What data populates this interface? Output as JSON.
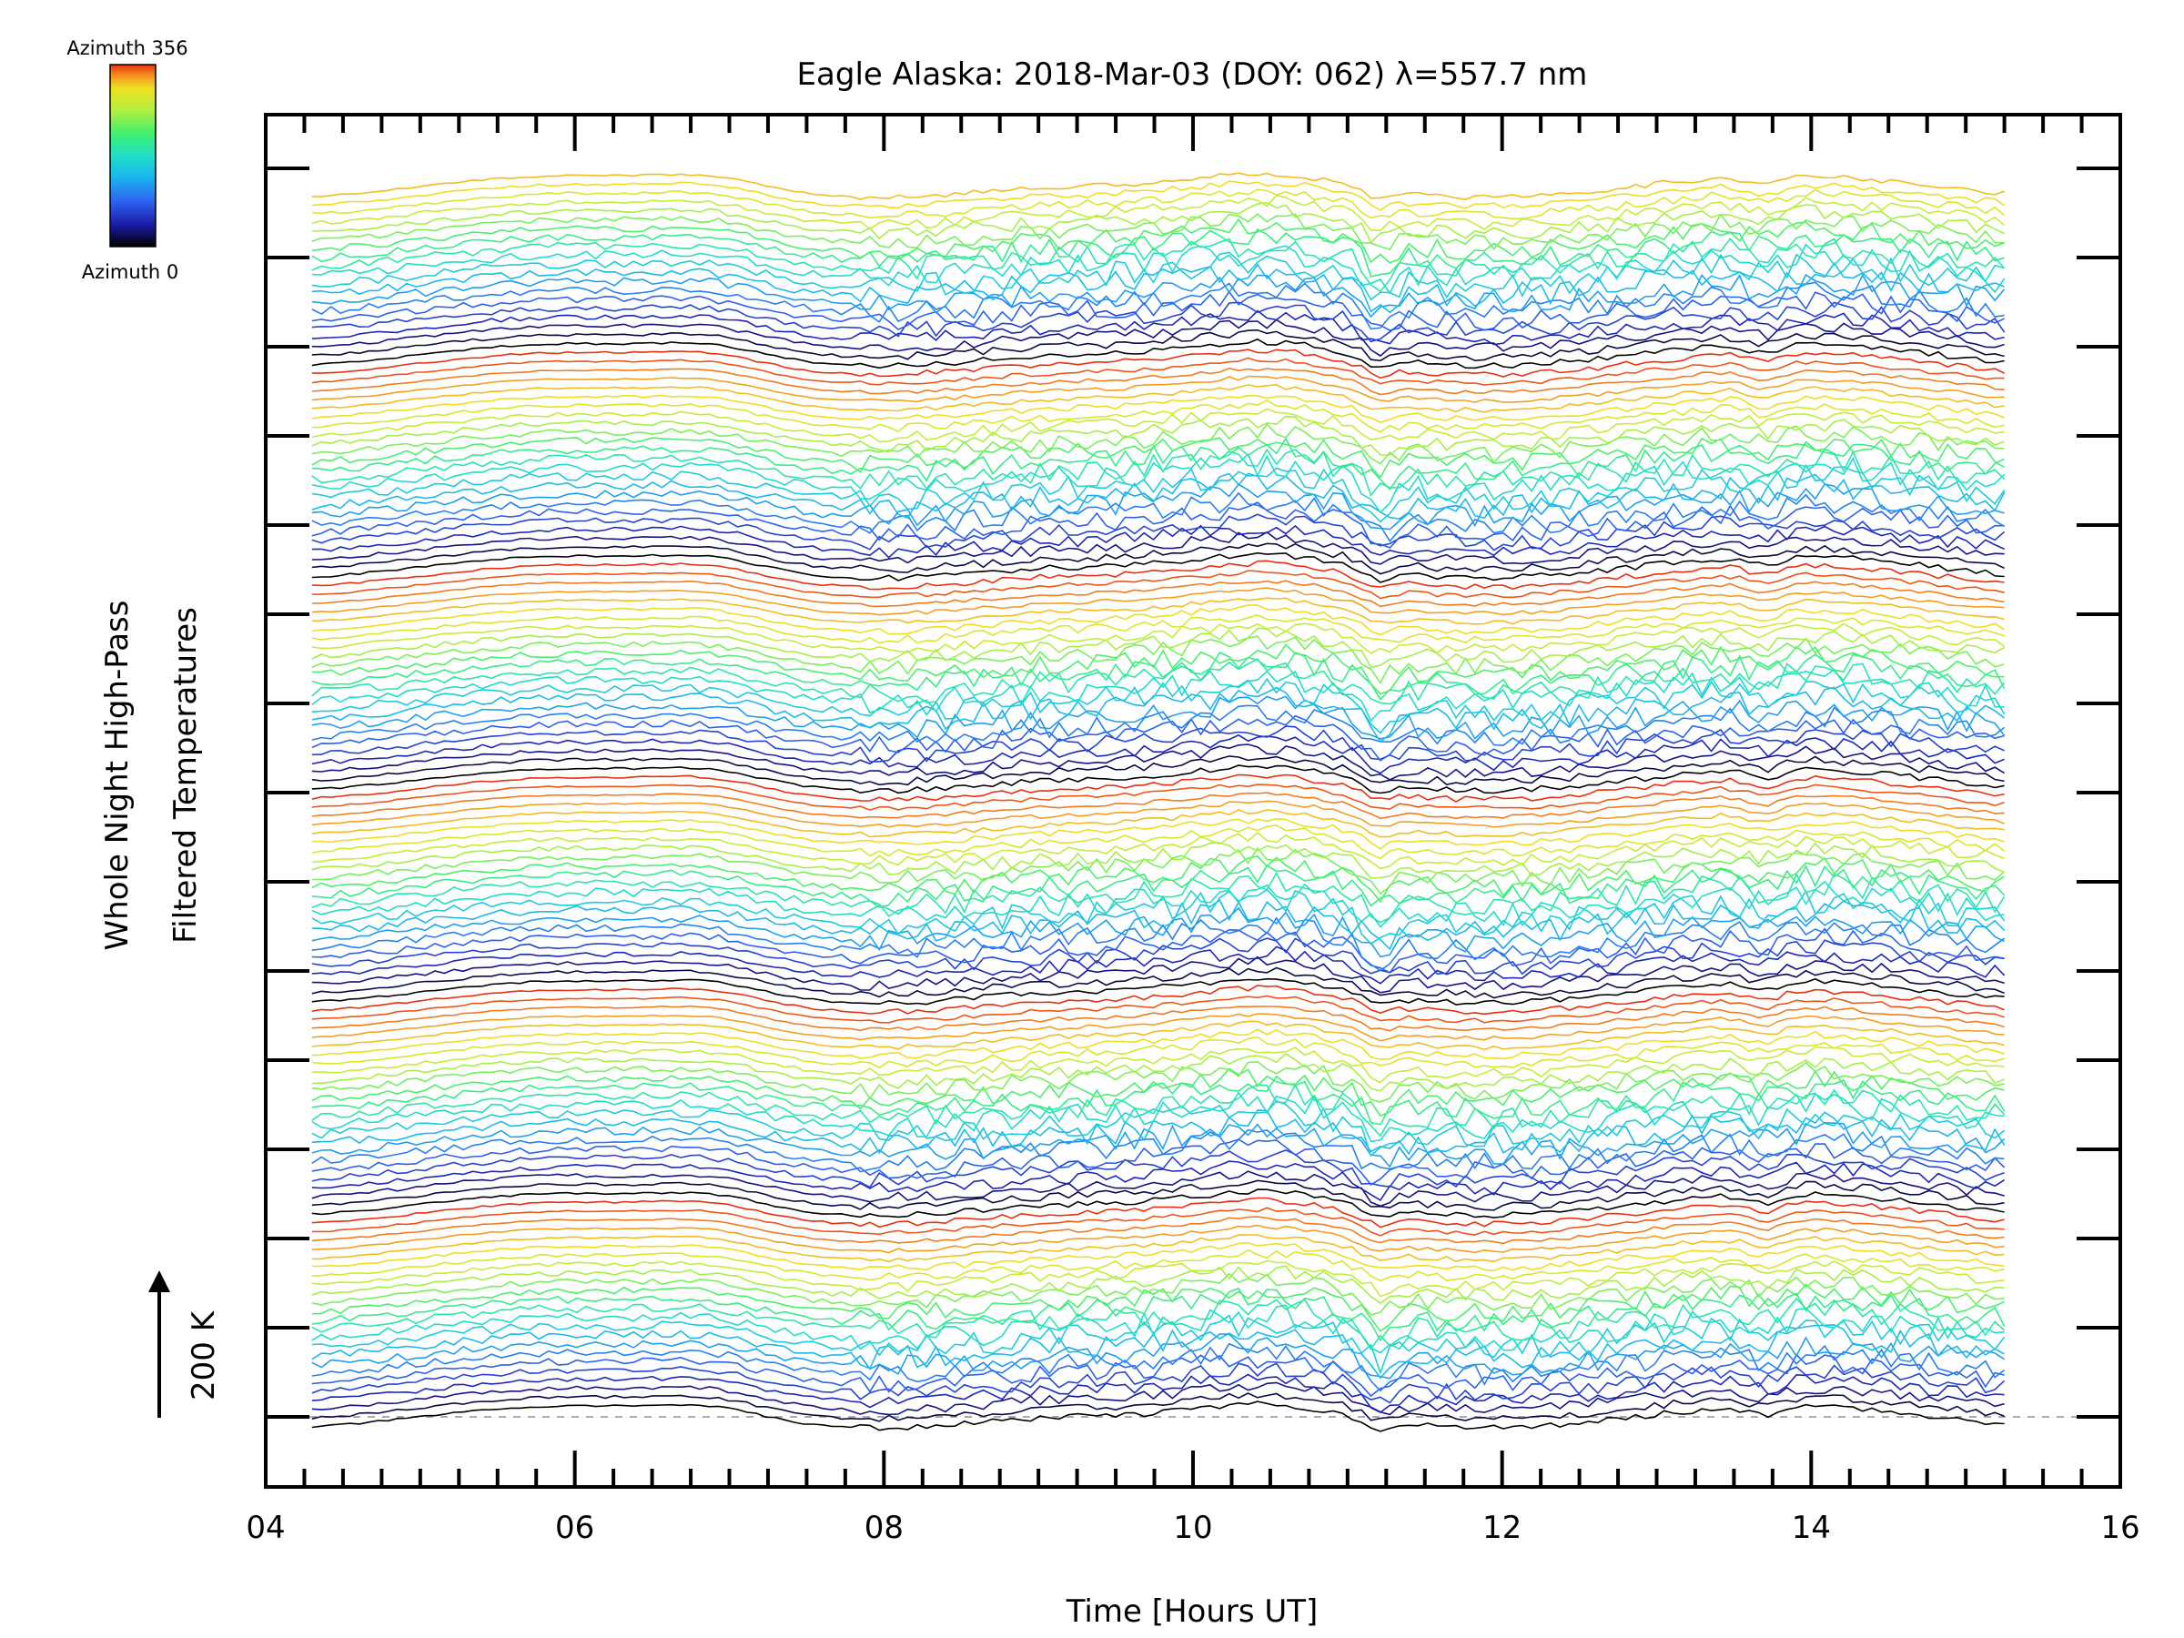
{
  "chart_data": {
    "type": "line",
    "title": "Eagle Alaska: 2018-Mar-03 (DOY: 062) λ=557.7 nm",
    "xlabel": "Time [Hours UT]",
    "ylabel_line1": "Whole Night High-Pass",
    "ylabel_line2": "Filtered Temperatures",
    "scale_bar_label": "200 K",
    "xlim": [
      4,
      16
    ],
    "x_ticks": [
      "04",
      "06",
      "08",
      "10",
      "12",
      "14",
      "16"
    ],
    "y_major_tick_count": 15,
    "time_range": [
      4.3,
      15.25
    ],
    "colorbar": {
      "top_label": "Azimuth 356",
      "bottom_label": "Azimuth 0",
      "colors": [
        "#000000",
        "#1a1aa8",
        "#2d64f0",
        "#19b4f0",
        "#20e0c8",
        "#40f070",
        "#b4f040",
        "#f0e020",
        "#f59020",
        "#e83010"
      ]
    },
    "series_count": 140,
    "series_note_visible": "",
    "baseline_style": "dashed",
    "grid": false
  }
}
